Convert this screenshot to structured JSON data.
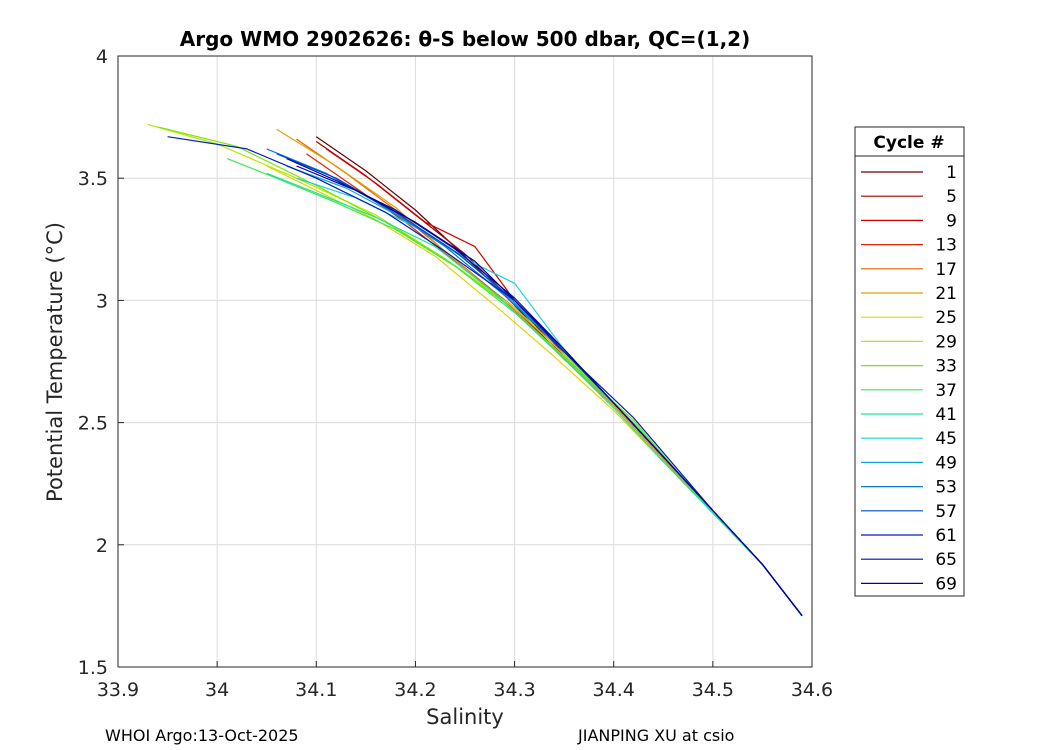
{
  "chart_data": {
    "type": "line",
    "title": "Argo WMO 2902626: θ-S below 500 dbar,  QC=(1,2)",
    "xlabel": "Salinity",
    "ylabel": "Potential Temperature (°C)",
    "xlim": [
      33.9,
      34.6
    ],
    "ylim": [
      1.5,
      4
    ],
    "xticks": [
      "33.9",
      "34",
      "34.1",
      "34.2",
      "34.3",
      "34.4",
      "34.5",
      "34.6"
    ],
    "yticks": [
      "1.5",
      "2",
      "2.5",
      "3",
      "3.5",
      "4"
    ],
    "grid": true,
    "legend": {
      "title": "Cycle #",
      "placement": "right-outside",
      "entries": [
        "1",
        "5",
        "9",
        "13",
        "17",
        "21",
        "25",
        "29",
        "33",
        "37",
        "41",
        "45",
        "49",
        "53",
        "57",
        "61",
        "65",
        "69"
      ],
      "colors": [
        "#6a0000",
        "#a50000",
        "#d00000",
        "#dd2500",
        "#e86000",
        "#e3a000",
        "#e3d300",
        "#b8e800",
        "#7ee600",
        "#3fe850",
        "#19e6a0",
        "#1ad0e0",
        "#10a8d8",
        "#0a78d0",
        "#0048c8",
        "#001ec0",
        "#0010a0",
        "#0000a8"
      ]
    },
    "series": [
      {
        "color": "#6a0000",
        "x": [
          34.1,
          34.15,
          34.2,
          34.25,
          34.3,
          34.35,
          34.4,
          34.45,
          34.5,
          34.55,
          34.59
        ],
        "y": [
          3.67,
          3.53,
          3.37,
          3.18,
          2.98,
          2.76,
          2.57,
          2.35,
          2.13,
          1.92,
          1.71
        ]
      },
      {
        "color": "#a50000",
        "x": [
          34.1,
          34.15,
          34.2,
          34.25,
          34.3,
          34.35,
          34.4,
          34.45,
          34.5,
          34.55,
          34.59
        ],
        "y": [
          3.65,
          3.51,
          3.35,
          3.19,
          2.99,
          2.77,
          2.58,
          2.36,
          2.14,
          1.92,
          1.71
        ]
      },
      {
        "color": "#d00000",
        "x": [
          34.11,
          34.16,
          34.21,
          34.26,
          34.3,
          34.35,
          34.4,
          34.45,
          34.5,
          34.55,
          34.59
        ],
        "y": [
          3.62,
          3.48,
          3.32,
          3.22,
          3.0,
          2.78,
          2.58,
          2.36,
          2.14,
          1.92,
          1.71
        ]
      },
      {
        "color": "#dd2500",
        "x": [
          34.09,
          34.14,
          34.19,
          34.24,
          34.3,
          34.35,
          34.4,
          34.45,
          34.5,
          34.55,
          34.59
        ],
        "y": [
          3.6,
          3.46,
          3.32,
          3.16,
          2.97,
          2.76,
          2.57,
          2.35,
          2.13,
          1.92,
          1.71
        ]
      },
      {
        "color": "#e86000",
        "x": [
          34.08,
          34.13,
          34.18,
          34.23,
          34.29,
          34.35,
          34.4,
          34.45,
          34.5,
          34.55,
          34.59
        ],
        "y": [
          3.66,
          3.52,
          3.37,
          3.2,
          3.0,
          2.76,
          2.57,
          2.35,
          2.13,
          1.92,
          1.71
        ]
      },
      {
        "color": "#e3a000",
        "x": [
          34.06,
          34.12,
          34.18,
          34.23,
          34.29,
          34.35,
          34.4,
          34.45,
          34.5,
          34.55,
          34.59
        ],
        "y": [
          3.7,
          3.55,
          3.38,
          3.2,
          2.99,
          2.76,
          2.57,
          2.35,
          2.13,
          1.92,
          1.71
        ]
      },
      {
        "color": "#e3d300",
        "x": [
          34.05,
          34.1,
          34.16,
          34.22,
          34.28,
          34.34,
          34.4,
          34.45,
          34.5,
          34.55,
          34.59
        ],
        "y": [
          3.55,
          3.45,
          3.33,
          3.18,
          2.98,
          2.77,
          2.55,
          2.34,
          2.13,
          1.92,
          1.71
        ]
      },
      {
        "color": "#b8e800",
        "x": [
          33.93,
          34.0,
          34.08,
          34.16,
          34.23,
          34.3,
          34.36,
          34.42,
          34.5,
          34.55,
          34.59
        ],
        "y": [
          3.72,
          3.64,
          3.5,
          3.35,
          3.17,
          2.97,
          2.74,
          2.5,
          2.13,
          1.92,
          1.71
        ]
      },
      {
        "color": "#7ee600",
        "x": [
          33.94,
          34.02,
          34.1,
          34.17,
          34.23,
          34.29,
          34.35,
          34.42,
          34.5,
          34.55,
          34.59
        ],
        "y": [
          3.71,
          3.63,
          3.47,
          3.32,
          3.17,
          2.99,
          2.77,
          2.51,
          2.13,
          1.92,
          1.71
        ]
      },
      {
        "color": "#3fe850",
        "x": [
          34.01,
          34.06,
          34.12,
          34.18,
          34.24,
          34.3,
          34.36,
          34.42,
          34.5,
          34.55,
          34.59
        ],
        "y": [
          3.58,
          3.5,
          3.4,
          3.29,
          3.14,
          2.95,
          2.73,
          2.5,
          2.13,
          1.92,
          1.71
        ]
      },
      {
        "color": "#19e6a0",
        "x": [
          34.05,
          34.1,
          34.16,
          34.22,
          34.28,
          34.34,
          34.4,
          34.45,
          34.5,
          34.55,
          34.59
        ],
        "y": [
          3.52,
          3.44,
          3.34,
          3.22,
          3.03,
          2.8,
          2.56,
          2.34,
          2.13,
          1.92,
          1.71
        ]
      },
      {
        "color": "#1ad0e0",
        "x": [
          34.08,
          34.14,
          34.2,
          34.26,
          34.3,
          34.35,
          34.4,
          34.45,
          34.5,
          34.55,
          34.59
        ],
        "y": [
          3.5,
          3.42,
          3.3,
          3.15,
          3.07,
          2.8,
          2.58,
          2.36,
          2.14,
          1.92,
          1.71
        ]
      },
      {
        "color": "#10a8d8",
        "x": [
          34.07,
          34.13,
          34.19,
          34.25,
          34.3,
          34.35,
          34.4,
          34.45,
          34.5,
          34.55,
          34.59
        ],
        "y": [
          3.55,
          3.46,
          3.33,
          3.17,
          2.99,
          2.79,
          2.58,
          2.36,
          2.14,
          1.92,
          1.71
        ]
      },
      {
        "color": "#0a78d0",
        "x": [
          34.05,
          34.11,
          34.17,
          34.23,
          34.29,
          34.35,
          34.4,
          34.45,
          34.5,
          34.55,
          34.59
        ],
        "y": [
          3.62,
          3.52,
          3.38,
          3.22,
          3.02,
          2.79,
          2.58,
          2.36,
          2.14,
          1.92,
          1.71
        ]
      },
      {
        "color": "#0048c8",
        "x": [
          34.06,
          34.12,
          34.18,
          34.24,
          34.3,
          34.35,
          34.4,
          34.45,
          34.5,
          34.55,
          34.59
        ],
        "y": [
          3.6,
          3.5,
          3.36,
          3.2,
          3.0,
          2.79,
          2.58,
          2.36,
          2.14,
          1.92,
          1.71
        ]
      },
      {
        "color": "#001ec0",
        "x": [
          33.95,
          34.03,
          34.1,
          34.17,
          34.23,
          34.3,
          34.35,
          34.42,
          34.5,
          34.55,
          34.59
        ],
        "y": [
          3.67,
          3.62,
          3.5,
          3.36,
          3.2,
          3.0,
          2.79,
          2.52,
          2.14,
          1.92,
          1.71
        ]
      },
      {
        "color": "#0010a0",
        "x": [
          34.07,
          34.12,
          34.18,
          34.24,
          34.3,
          34.35,
          34.4,
          34.45,
          34.5,
          34.55,
          34.59
        ],
        "y": [
          3.58,
          3.49,
          3.37,
          3.21,
          3.01,
          2.8,
          2.58,
          2.36,
          2.14,
          1.92,
          1.71
        ]
      },
      {
        "color": "#0000a8",
        "x": [
          34.08,
          34.14,
          34.2,
          34.26,
          34.3,
          34.35,
          34.4,
          34.45,
          34.5,
          34.55,
          34.59
        ],
        "y": [
          3.55,
          3.45,
          3.32,
          3.16,
          3.0,
          2.8,
          2.58,
          2.36,
          2.14,
          1.92,
          1.71
        ]
      }
    ]
  },
  "footer": {
    "left": "WHOI Argo:13-Oct-2025",
    "right": "JIANPING XU at csio"
  }
}
